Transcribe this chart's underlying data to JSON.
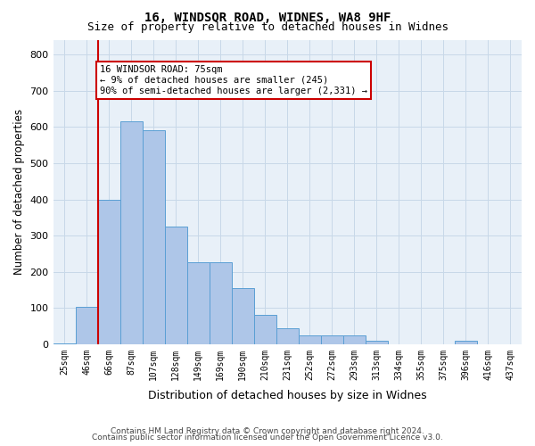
{
  "title1": "16, WINDSOR ROAD, WIDNES, WA8 9HF",
  "title2": "Size of property relative to detached houses in Widnes",
  "xlabel": "Distribution of detached houses by size in Widnes",
  "ylabel": "Number of detached properties",
  "categories": [
    "25sqm",
    "46sqm",
    "66sqm",
    "87sqm",
    "107sqm",
    "128sqm",
    "149sqm",
    "169sqm",
    "190sqm",
    "210sqm",
    "231sqm",
    "252sqm",
    "272sqm",
    "293sqm",
    "313sqm",
    "334sqm",
    "355sqm",
    "375sqm",
    "396sqm",
    "416sqm",
    "437sqm"
  ],
  "values": [
    2,
    103,
    400,
    615,
    590,
    325,
    225,
    225,
    155,
    80,
    45,
    25,
    25,
    25,
    10,
    0,
    0,
    0,
    10,
    0,
    0
  ],
  "bar_color": "#aec6e8",
  "bar_edge_color": "#5a9fd4",
  "grid_color": "#c8d8e8",
  "background_color": "#e8f0f8",
  "vline_x": 1,
  "vline_color": "#cc0000",
  "annotation_text": "16 WINDSOR ROAD: 75sqm\n← 9% of detached houses are smaller (245)\n90% of semi-detached houses are larger (2,331) →",
  "annotation_box_color": "#cc0000",
  "ylim": [
    0,
    840
  ],
  "yticks": [
    0,
    100,
    200,
    300,
    400,
    500,
    600,
    700,
    800
  ],
  "footer1": "Contains HM Land Registry data © Crown copyright and database right 2024.",
  "footer2": "Contains public sector information licensed under the Open Government Licence v3.0."
}
